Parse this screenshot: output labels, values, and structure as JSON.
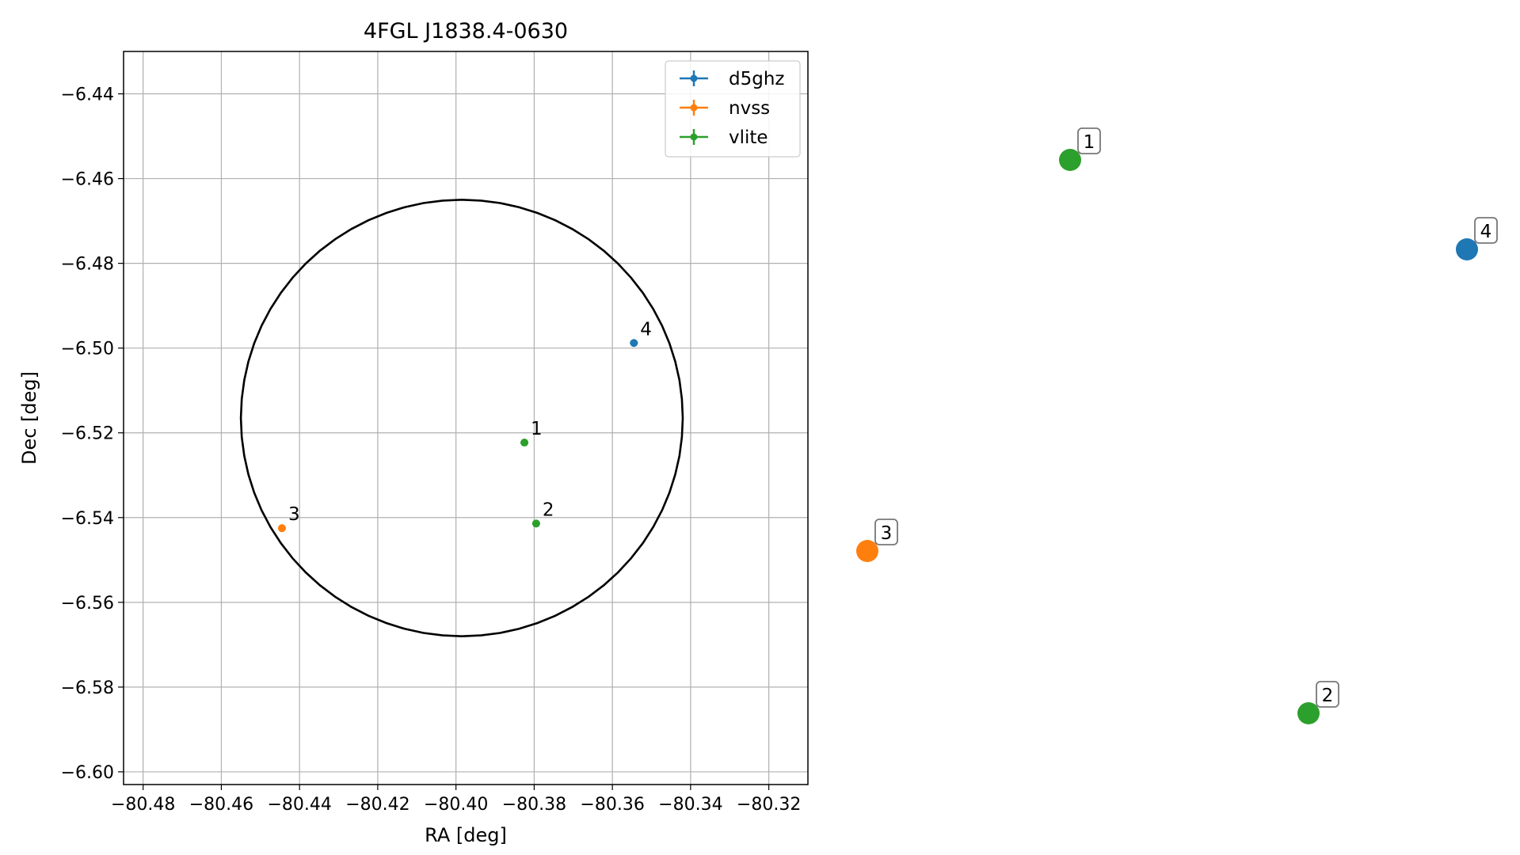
{
  "chart_data": {
    "type": "scatter",
    "title": "4FGL J1838.4-0630",
    "xlabel": "RA [deg]",
    "ylabel": "Dec [deg]",
    "xlim": [
      -80.485,
      -80.31
    ],
    "ylim": [
      -6.603,
      -6.43
    ],
    "x_ticks": [
      -80.48,
      -80.46,
      -80.44,
      -80.42,
      -80.4,
      -80.38,
      -80.36,
      -80.34,
      -80.32
    ],
    "x_tick_labels": [
      "−80.48",
      "−80.46",
      "−80.44",
      "−80.42",
      "−80.40",
      "−80.38",
      "−80.36",
      "−80.34",
      "−80.32"
    ],
    "y_ticks": [
      -6.44,
      -6.46,
      -6.48,
      -6.5,
      -6.52,
      -6.54,
      -6.56,
      -6.58,
      -6.6
    ],
    "y_tick_labels": [
      "−6.44",
      "−6.46",
      "−6.48",
      "−6.50",
      "−6.52",
      "−6.54",
      "−6.56",
      "−6.58",
      "−6.60"
    ],
    "grid": true,
    "legend_position": "top-right",
    "ellipse": {
      "center": [
        -80.3985,
        -6.5165
      ],
      "semi_axis_ra": 0.0565,
      "semi_axis_dec": 0.0515,
      "color": "#000000"
    },
    "series": [
      {
        "name": "d5ghz",
        "color": "#1f77b4",
        "points": [
          {
            "id": "4",
            "x": -80.3545,
            "y": -6.4988
          }
        ]
      },
      {
        "name": "nvss",
        "color": "#ff7f0e",
        "points": [
          {
            "id": "3",
            "x": -80.4445,
            "y": -6.5425
          }
        ]
      },
      {
        "name": "vlite",
        "color": "#2ca02c",
        "points": [
          {
            "id": "1",
            "x": -80.3825,
            "y": -6.5223
          },
          {
            "id": "2",
            "x": -80.3795,
            "y": -6.5414
          }
        ]
      }
    ],
    "overview_markers": [
      {
        "id": "1",
        "color": "#2ca02c"
      },
      {
        "id": "4",
        "color": "#1f77b4"
      },
      {
        "id": "3",
        "color": "#ff7f0e"
      },
      {
        "id": "2",
        "color": "#2ca02c"
      }
    ]
  }
}
